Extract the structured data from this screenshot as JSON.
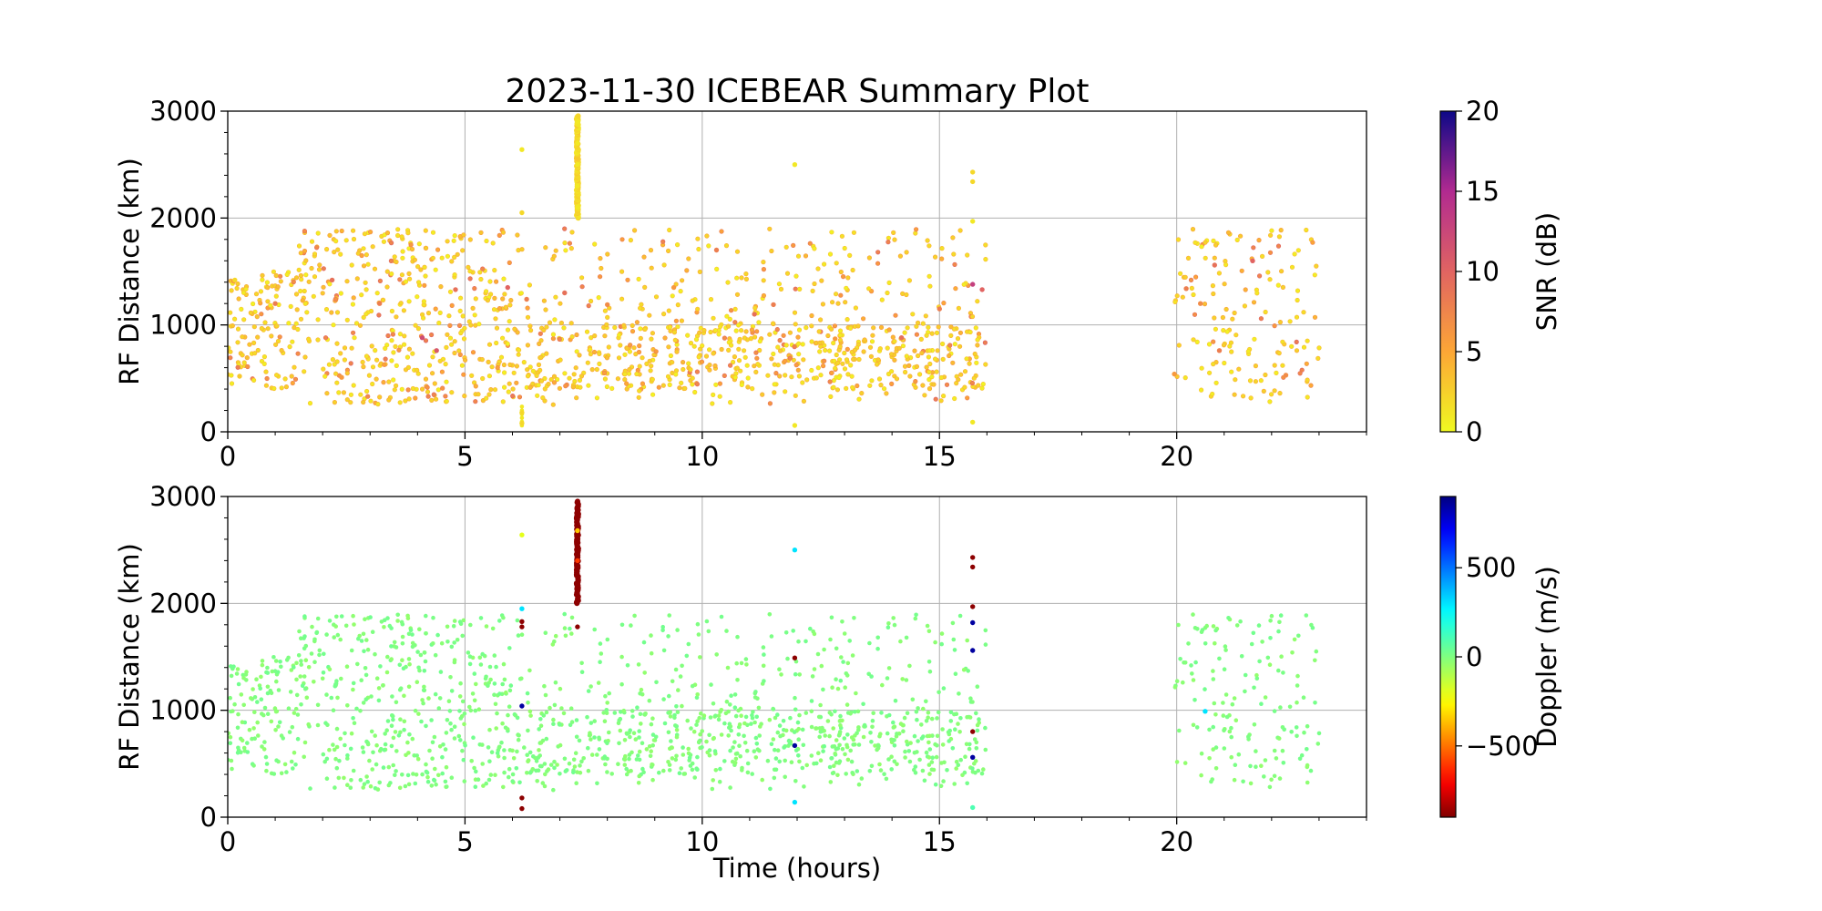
{
  "title": "2023-11-30 ICEBEAR Summary Plot",
  "chart_data": [
    {
      "type": "scatter",
      "panel": "top",
      "xlabel": "",
      "ylabel": "RF Distance (km)",
      "xlim": [
        0,
        24
      ],
      "ylim": [
        0,
        3000
      ],
      "xticks": [
        0,
        5,
        10,
        15,
        20
      ],
      "yticks": [
        0,
        1000,
        2000,
        3000
      ],
      "grid": true,
      "colorbar": {
        "label": "SNR (dB)",
        "colormap": "plasma_r",
        "range": [
          0,
          20
        ],
        "ticks": [
          0,
          5,
          10,
          15,
          20
        ]
      },
      "observation_windows_hours": [
        [
          0,
          16
        ],
        [
          19.9,
          23
        ]
      ],
      "points": [
        {
          "x": 7.37,
          "y": 2900,
          "c": 1
        },
        {
          "x": 7.37,
          "y": 2700,
          "c": 1
        },
        {
          "x": 7.37,
          "y": 2500,
          "c": 1
        },
        {
          "x": 7.37,
          "y": 2300,
          "c": 1
        },
        {
          "x": 7.37,
          "y": 2100,
          "c": 1
        },
        {
          "x": 6.2,
          "y": 2640,
          "c": 1
        },
        {
          "x": 6.2,
          "y": 2050,
          "c": 2
        },
        {
          "x": 6.2,
          "y": 180,
          "c": 2
        },
        {
          "x": 6.2,
          "y": 80,
          "c": 2
        },
        {
          "x": 11.95,
          "y": 2500,
          "c": 1
        },
        {
          "x": 11.95,
          "y": 60,
          "c": 1
        },
        {
          "x": 15.7,
          "y": 2430,
          "c": 2
        },
        {
          "x": 15.7,
          "y": 2340,
          "c": 2
        },
        {
          "x": 15.7,
          "y": 1970,
          "c": 1
        },
        {
          "x": 15.7,
          "y": 90,
          "c": 1
        },
        {
          "x": 0.15,
          "y": 1420,
          "c": 2
        },
        {
          "x": 0.25,
          "y": 520,
          "c": 3
        },
        {
          "x": 1.0,
          "y": 1200,
          "c": 8
        },
        {
          "x": 2.2,
          "y": 1420,
          "c": 9
        },
        {
          "x": 2.4,
          "y": 510,
          "c": 6
        },
        {
          "x": 3.2,
          "y": 1200,
          "c": 8
        },
        {
          "x": 4.1,
          "y": 880,
          "c": 12
        },
        {
          "x": 4.4,
          "y": 760,
          "c": 11
        },
        {
          "x": 4.8,
          "y": 1330,
          "c": 9
        },
        {
          "x": 5.9,
          "y": 1350,
          "c": 10
        },
        {
          "x": 6.3,
          "y": 1240,
          "c": 8
        },
        {
          "x": 7.1,
          "y": 1300,
          "c": 9
        },
        {
          "x": 8.0,
          "y": 1190,
          "c": 7
        },
        {
          "x": 9.4,
          "y": 1350,
          "c": 6
        },
        {
          "x": 10.3,
          "y": 1700,
          "c": 8
        },
        {
          "x": 11.1,
          "y": 1100,
          "c": 9
        },
        {
          "x": 11.5,
          "y": 1190,
          "c": 8
        },
        {
          "x": 12.8,
          "y": 870,
          "c": 6
        },
        {
          "x": 14.2,
          "y": 880,
          "c": 9
        },
        {
          "x": 15.0,
          "y": 1150,
          "c": 8
        },
        {
          "x": 15.7,
          "y": 1380,
          "c": 13
        },
        {
          "x": 15.9,
          "y": 1330,
          "c": 10
        },
        {
          "x": 20.2,
          "y": 1340,
          "c": 8
        },
        {
          "x": 20.5,
          "y": 1200,
          "c": 7
        },
        {
          "x": 20.8,
          "y": 1560,
          "c": 9
        },
        {
          "x": 20.9,
          "y": 760,
          "c": 8
        },
        {
          "x": 21.6,
          "y": 1600,
          "c": 10
        },
        {
          "x": 22.3,
          "y": 530,
          "c": 7
        },
        {
          "x": 19.95,
          "y": 540,
          "c": 6
        }
      ],
      "points_generated": {
        "count": 1500,
        "y_range": [
          250,
          1900
        ],
        "dense_band_hours": [
          6,
          16
        ],
        "dense_band_km": [
          400,
          1000
        ]
      }
    },
    {
      "type": "scatter",
      "panel": "bottom",
      "xlabel": "Time (hours)",
      "ylabel": "RF Distance (km)",
      "xlim": [
        0,
        24
      ],
      "ylim": [
        0,
        3000
      ],
      "xticks": [
        0,
        5,
        10,
        15,
        20
      ],
      "yticks": [
        0,
        1000,
        2000,
        3000
      ],
      "grid": true,
      "colorbar": {
        "label": "Doppler (m/s)",
        "colormap": "jet_r",
        "range": [
          -900,
          900
        ],
        "ticks": [
          -500,
          0,
          500
        ]
      },
      "observation_windows_hours": [
        [
          0,
          16
        ],
        [
          19.9,
          23
        ]
      ],
      "points": [
        {
          "x": 7.37,
          "y": 2900,
          "c": -880
        },
        {
          "x": 7.37,
          "y": 2700,
          "c": -880
        },
        {
          "x": 7.37,
          "y": 2500,
          "c": -880
        },
        {
          "x": 7.37,
          "y": 2300,
          "c": -880
        },
        {
          "x": 7.37,
          "y": 2100,
          "c": -880
        },
        {
          "x": 7.37,
          "y": 2680,
          "c": -350
        },
        {
          "x": 7.37,
          "y": 2400,
          "c": -600
        },
        {
          "x": 7.37,
          "y": 1780,
          "c": -880
        },
        {
          "x": 6.2,
          "y": 2640,
          "c": -200
        },
        {
          "x": 6.2,
          "y": 1830,
          "c": -880
        },
        {
          "x": 6.2,
          "y": 1780,
          "c": -880
        },
        {
          "x": 6.2,
          "y": 1040,
          "c": 850
        },
        {
          "x": 6.2,
          "y": 180,
          "c": -880
        },
        {
          "x": 6.2,
          "y": 80,
          "c": -880
        },
        {
          "x": 6.2,
          "y": 1950,
          "c": 300
        },
        {
          "x": 11.95,
          "y": 2500,
          "c": 300
        },
        {
          "x": 11.95,
          "y": 1490,
          "c": -880
        },
        {
          "x": 11.95,
          "y": 670,
          "c": 850
        },
        {
          "x": 11.95,
          "y": 140,
          "c": 300
        },
        {
          "x": 15.7,
          "y": 2430,
          "c": -880
        },
        {
          "x": 15.7,
          "y": 2340,
          "c": -880
        },
        {
          "x": 15.7,
          "y": 1970,
          "c": -880
        },
        {
          "x": 15.7,
          "y": 1820,
          "c": 850
        },
        {
          "x": 15.7,
          "y": 1560,
          "c": 850
        },
        {
          "x": 15.7,
          "y": 800,
          "c": -880
        },
        {
          "x": 15.7,
          "y": 560,
          "c": 850
        },
        {
          "x": 15.7,
          "y": 90,
          "c": 100
        },
        {
          "x": 20.6,
          "y": 990,
          "c": 300
        }
      ],
      "points_generated": {
        "count": 1500,
        "y_range": [
          250,
          1900
        ],
        "dense_band_hours": [
          6,
          16
        ],
        "dense_band_km": [
          400,
          1000
        ]
      }
    }
  ]
}
